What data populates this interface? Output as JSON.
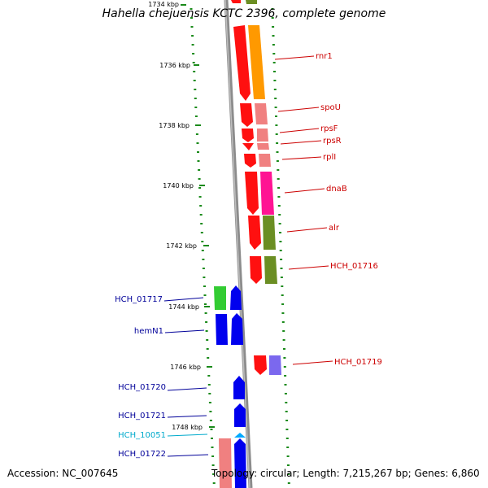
{
  "title": "Hahella chejuensis KCTC 2396, complete genome",
  "footer": {
    "accession": "Accession: NC_007645",
    "topology": "Topology: circular; Length: 7,215,267 bp; Genes: 6,860"
  },
  "colors": {
    "strand_line": "#888888",
    "dots": "#1a8a1a",
    "label_red": "#cc0000",
    "label_blue": "#000099",
    "label_cyan": "#00aacc"
  },
  "ticks": [
    {
      "label": "1734 kbp"
    },
    {
      "label": "1736 kbp"
    },
    {
      "label": "1738 kbp"
    },
    {
      "label": "1740 kbp"
    },
    {
      "label": "1742 kbp"
    },
    {
      "label": "1744 kbp"
    },
    {
      "label": "1746 kbp"
    },
    {
      "label": "1748 kbp"
    }
  ],
  "genes_right": [
    {
      "name": "rnr1"
    },
    {
      "name": "spoU"
    },
    {
      "name": "rpsF"
    },
    {
      "name": "rpsR"
    },
    {
      "name": "rplI"
    },
    {
      "name": "dnaB"
    },
    {
      "name": "alr"
    },
    {
      "name": "HCH_01716"
    },
    {
      "name": "HCH_01719"
    }
  ],
  "genes_left": [
    {
      "name": "HCH_01717"
    },
    {
      "name": "hemN1"
    },
    {
      "name": "HCH_01720"
    },
    {
      "name": "HCH_01721"
    },
    {
      "name": "HCH_10051"
    },
    {
      "name": "HCH_01722"
    }
  ]
}
